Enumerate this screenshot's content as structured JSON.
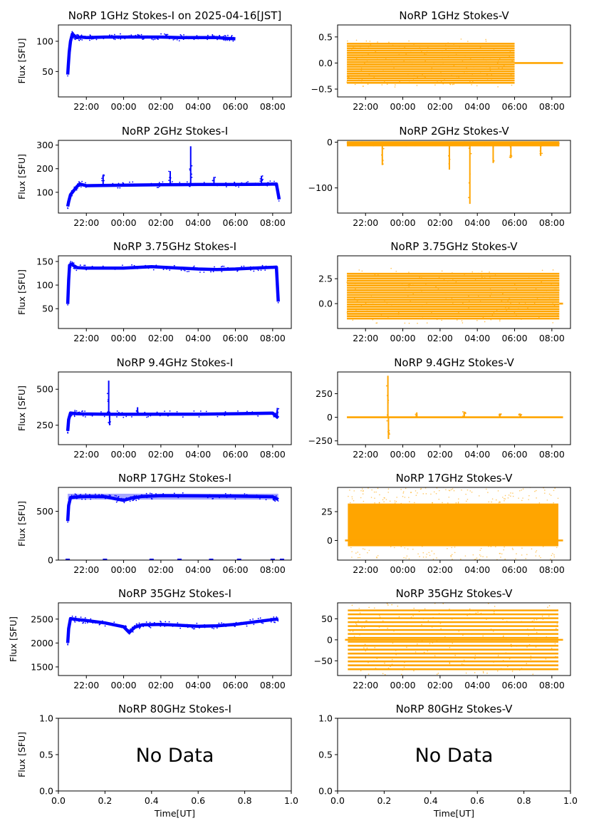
{
  "figure": {
    "xlabel": "Time[UT]"
  },
  "colors": {
    "stokes_i": "#0000ff",
    "stokes_v": "#ffa500",
    "axes": "#000000"
  },
  "time_ticks": [
    "22:00",
    "00:00",
    "02:00",
    "04:00",
    "06:00",
    "08:00"
  ],
  "chart_data": [
    {
      "id": "i1",
      "type": "line",
      "title": "NoRP 1GHz Stokes-I on 2025-04-16[JST]",
      "ylabel": "Flux [SFU]",
      "series": [
        {
          "color": "#0000ff"
        }
      ],
      "xlim": [
        20.5,
        33.0
      ],
      "ylim": [
        8,
        127
      ],
      "yticks": [
        {
          "v": 50,
          "label": "50"
        },
        {
          "v": 100,
          "label": "100"
        }
      ],
      "x": [
        21.0,
        21.03,
        21.08,
        21.15,
        21.25,
        21.4,
        21.5,
        21.7,
        22.0,
        23.0,
        24.0,
        25.0,
        26.0,
        27.0,
        28.0,
        29.0,
        29.5,
        30.0
      ],
      "y": [
        45,
        60,
        82,
        100,
        112,
        108,
        106,
        107,
        106,
        107,
        107,
        107,
        107,
        106,
        106,
        106,
        105,
        104
      ],
      "bands": [],
      "spikes": [
        {
          "x": 24.8,
          "y": 111
        },
        {
          "x": 26.3,
          "y": 112
        }
      ]
    },
    {
      "id": "v1",
      "type": "scatter",
      "title": "NoRP 1GHz Stokes-V",
      "ylabel": "",
      "series": [
        {
          "color": "#ffa500"
        }
      ],
      "xlim": [
        20.5,
        33.0
      ],
      "ylim": [
        -0.65,
        0.73
      ],
      "yticks": [
        {
          "v": -0.5,
          "label": "−0.5"
        },
        {
          "v": 0.0,
          "label": "0.0"
        },
        {
          "v": 0.5,
          "label": "0.5"
        }
      ],
      "x": [
        30.0,
        32.6
      ],
      "y": [
        0.0,
        0.0
      ],
      "bands": [
        {
          "x0": 21.0,
          "x1": 30.0,
          "lo": -0.38,
          "hi": 0.37,
          "lines": 18
        }
      ],
      "spikes": []
    },
    {
      "id": "i2",
      "type": "line",
      "title": "NoRP 2GHz Stokes-I",
      "ylabel": "Flux [SFU]",
      "series": [
        {
          "color": "#0000ff"
        }
      ],
      "xlim": [
        20.5,
        33.0
      ],
      "ylim": [
        12,
        320
      ],
      "yticks": [
        {
          "v": 100,
          "label": "100"
        },
        {
          "v": 200,
          "label": "200"
        },
        {
          "v": 300,
          "label": "300"
        }
      ],
      "x": [
        21.0,
        21.05,
        21.15,
        21.3,
        21.5,
        21.65,
        22.0,
        24.0,
        26.0,
        28.0,
        30.0,
        31.5,
        32.2,
        32.35
      ],
      "y": [
        40,
        60,
        90,
        105,
        125,
        135,
        128,
        130,
        132,
        133,
        133,
        134,
        135,
        70
      ],
      "bands": [],
      "spikes": [
        {
          "x": 22.9,
          "y": 175
        },
        {
          "x": 26.5,
          "y": 190
        },
        {
          "x": 27.6,
          "y": 295
        },
        {
          "x": 28.85,
          "y": 165
        },
        {
          "x": 31.4,
          "y": 170
        }
      ]
    },
    {
      "id": "v2",
      "type": "scatter",
      "title": "NoRP 2GHz Stokes-V",
      "ylabel": "",
      "series": [
        {
          "color": "#ffa500"
        }
      ],
      "xlim": [
        20.5,
        33.0
      ],
      "ylim": [
        -155,
        4
      ],
      "yticks": [
        {
          "v": -100,
          "label": "−100"
        },
        {
          "v": 0,
          "label": "0"
        }
      ],
      "x": [
        21.0,
        32.4
      ],
      "y": [
        -2,
        -2
      ],
      "bands": [
        {
          "x0": 21.0,
          "x1": 32.4,
          "lo": -7,
          "hi": 0,
          "lines": 4
        }
      ],
      "spikes": [
        {
          "x": 22.9,
          "y": -50
        },
        {
          "x": 26.5,
          "y": -60
        },
        {
          "x": 27.6,
          "y": -135
        },
        {
          "x": 28.85,
          "y": -45
        },
        {
          "x": 29.8,
          "y": -35
        },
        {
          "x": 31.4,
          "y": -30
        }
      ]
    },
    {
      "id": "i3",
      "type": "line",
      "title": "NoRP 3.75GHz Stokes-I",
      "ylabel": "Flux [SFU]",
      "series": [
        {
          "color": "#0000ff"
        }
      ],
      "xlim": [
        20.5,
        33.0
      ],
      "ylim": [
        8,
        162
      ],
      "yticks": [
        {
          "v": 50,
          "label": "50"
        },
        {
          "v": 100,
          "label": "100"
        },
        {
          "v": 150,
          "label": "150"
        }
      ],
      "x": [
        21.0,
        21.05,
        21.1,
        21.2,
        21.5,
        22.0,
        24.0,
        25.5,
        27.0,
        28.0,
        29.0,
        30.0,
        31.0,
        32.2,
        32.3
      ],
      "y": [
        60,
        110,
        142,
        144,
        137,
        136,
        136,
        139,
        136,
        134,
        133,
        134,
        136,
        138,
        65
      ],
      "bands": [],
      "spikes": []
    },
    {
      "id": "v3",
      "type": "scatter",
      "title": "NoRP 3.75GHz Stokes-V",
      "ylabel": "",
      "series": [
        {
          "color": "#ffa500"
        }
      ],
      "xlim": [
        20.5,
        33.0
      ],
      "ylim": [
        -2.5,
        4.8
      ],
      "yticks": [
        {
          "v": 0.0,
          "label": "0.0"
        },
        {
          "v": 2.5,
          "label": "2.5"
        }
      ],
      "x": [
        32.4,
        32.6
      ],
      "y": [
        0.0,
        0.0
      ],
      "bands": [
        {
          "x0": 21.0,
          "x1": 32.4,
          "lo": -1.5,
          "hi": 3.0,
          "lines": 20
        }
      ],
      "spikes": []
    },
    {
      "id": "i4",
      "type": "line",
      "title": "NoRP 9.4GHz Stokes-I",
      "ylabel": "Flux [SFU]",
      "series": [
        {
          "color": "#0000ff"
        }
      ],
      "xlim": [
        20.5,
        33.0
      ],
      "ylim": [
        115,
        620
      ],
      "yticks": [
        {
          "v": 250,
          "label": "250"
        },
        {
          "v": 500,
          "label": "500"
        }
      ],
      "x": [
        21.0,
        21.05,
        21.15,
        21.5,
        22.0,
        23.0,
        24.0,
        26.0,
        28.0,
        30.0,
        32.0,
        32.3
      ],
      "y": [
        210,
        290,
        335,
        330,
        328,
        327,
        326,
        327,
        327,
        330,
        334,
        300
      ],
      "bands": [],
      "spikes": [
        {
          "x": 23.2,
          "y": 560
        },
        {
          "x": 23.25,
          "y": 250
        },
        {
          "x": 24.75,
          "y": 375
        },
        {
          "x": 32.25,
          "y": 370
        }
      ]
    },
    {
      "id": "v4",
      "type": "scatter",
      "title": "NoRP 9.4GHz Stokes-V",
      "ylabel": "",
      "series": [
        {
          "color": "#ffa500"
        }
      ],
      "xlim": [
        20.5,
        33.0
      ],
      "ylim": [
        -290,
        480
      ],
      "yticks": [
        {
          "v": -250,
          "label": "−250"
        },
        {
          "v": 0,
          "label": "0"
        },
        {
          "v": 250,
          "label": "250"
        }
      ],
      "x": [
        21.0,
        32.6
      ],
      "y": [
        0,
        0
      ],
      "bands": [],
      "spikes": [
        {
          "x": 23.2,
          "y": 440
        },
        {
          "x": 23.23,
          "y": -230
        },
        {
          "x": 24.75,
          "y": 50
        },
        {
          "x": 27.3,
          "y": 60
        },
        {
          "x": 29.2,
          "y": 40
        },
        {
          "x": 30.3,
          "y": 40
        }
      ]
    },
    {
      "id": "i5",
      "type": "line",
      "title": "NoRP 17GHz Stokes-I",
      "ylabel": "Flux [SFU]",
      "series": [
        {
          "color": "#0000ff"
        }
      ],
      "xlim": [
        20.5,
        33.0
      ],
      "ylim": [
        0,
        745
      ],
      "yticks": [
        {
          "v": 0,
          "label": "0"
        },
        {
          "v": 500,
          "label": "500"
        }
      ],
      "x": [
        21.0,
        21.05,
        21.15,
        21.5,
        22.0,
        23.0,
        23.5,
        24.0,
        24.5,
        25.0,
        26.0,
        28.0,
        30.0,
        32.0,
        32.3
      ],
      "y": [
        400,
        560,
        640,
        648,
        652,
        650,
        630,
        612,
        638,
        652,
        660,
        658,
        656,
        650,
        620
      ],
      "bands": [
        {
          "x0": 21.0,
          "x1": 32.3,
          "lo": 620,
          "hi": 680,
          "lines": 8
        }
      ],
      "spikes": []
    },
    {
      "id": "v5",
      "type": "scatter",
      "title": "NoRP 17GHz Stokes-V",
      "ylabel": "",
      "series": [
        {
          "color": "#ffa500"
        }
      ],
      "xlim": [
        20.5,
        33.0
      ],
      "ylim": [
        -17,
        46
      ],
      "yticks": [
        {
          "v": 0,
          "label": "0"
        },
        {
          "v": 25,
          "label": "25"
        }
      ],
      "x": [
        20.9,
        32.6
      ],
      "y": [
        0,
        0
      ],
      "bands": [
        {
          "x0": 21.05,
          "x1": 32.35,
          "lo": -5,
          "hi": 32,
          "lines": 0
        }
      ],
      "spikes": []
    },
    {
      "id": "i6",
      "type": "line",
      "title": "NoRP 35GHz Stokes-I",
      "ylabel": "Flux [SFU]",
      "series": [
        {
          "color": "#0000ff"
        }
      ],
      "xlim": [
        20.5,
        33.0
      ],
      "ylim": [
        1320,
        2840
      ],
      "yticks": [
        {
          "v": 1500,
          "label": "1500"
        },
        {
          "v": 2000,
          "label": "2000"
        },
        {
          "v": 2500,
          "label": "2500"
        }
      ],
      "x": [
        21.0,
        21.05,
        21.15,
        21.5,
        22.0,
        23.0,
        24.0,
        24.3,
        24.6,
        25.0,
        26.0,
        27.0,
        28.0,
        29.0,
        30.0,
        31.0,
        32.0,
        32.3
      ],
      "y": [
        2000,
        2300,
        2510,
        2490,
        2470,
        2420,
        2340,
        2220,
        2330,
        2380,
        2390,
        2370,
        2350,
        2360,
        2390,
        2440,
        2490,
        2500
      ],
      "bands": [],
      "spikes": []
    },
    {
      "id": "v6",
      "type": "scatter",
      "title": "NoRP 35GHz Stokes-V",
      "ylabel": "",
      "series": [
        {
          "color": "#ffa500"
        }
      ],
      "xlim": [
        20.5,
        33.0
      ],
      "ylim": [
        -85,
        88
      ],
      "yticks": [
        {
          "v": -50,
          "label": "−50"
        },
        {
          "v": 0,
          "label": "0"
        },
        {
          "v": 50,
          "label": "50"
        }
      ],
      "x": [
        20.9,
        32.6
      ],
      "y": [
        0,
        0
      ],
      "bands": [
        {
          "x0": 21.05,
          "x1": 32.35,
          "lo": -70,
          "hi": 70,
          "lines": 16
        }
      ],
      "spikes": []
    },
    {
      "id": "i7",
      "type": "text",
      "title": "NoRP 80GHz Stokes-I",
      "ylabel": "Flux [SFU]",
      "xlabel": "Time[UT]",
      "message": "No Data",
      "xlim": [
        0,
        1
      ],
      "ylim": [
        0,
        1
      ],
      "xticks": [
        "0.0",
        "0.2",
        "0.4",
        "0.6",
        "0.8",
        "1.0"
      ],
      "yticks": [
        {
          "v": 0.0,
          "label": "0.0"
        },
        {
          "v": 0.5,
          "label": "0.5"
        },
        {
          "v": 1.0,
          "label": "1.0"
        }
      ]
    },
    {
      "id": "v7",
      "type": "text",
      "title": "NoRP 80GHz Stokes-V",
      "ylabel": "",
      "xlabel": "Time[UT]",
      "message": "No Data",
      "xlim": [
        0,
        1
      ],
      "ylim": [
        0,
        1
      ],
      "xticks": [
        "0.0",
        "0.2",
        "0.4",
        "0.6",
        "0.8",
        "1.0"
      ],
      "yticks": [
        {
          "v": 0.0,
          "label": "0.0"
        },
        {
          "v": 0.5,
          "label": "0.5"
        },
        {
          "v": 1.0,
          "label": "1.0"
        }
      ]
    }
  ]
}
